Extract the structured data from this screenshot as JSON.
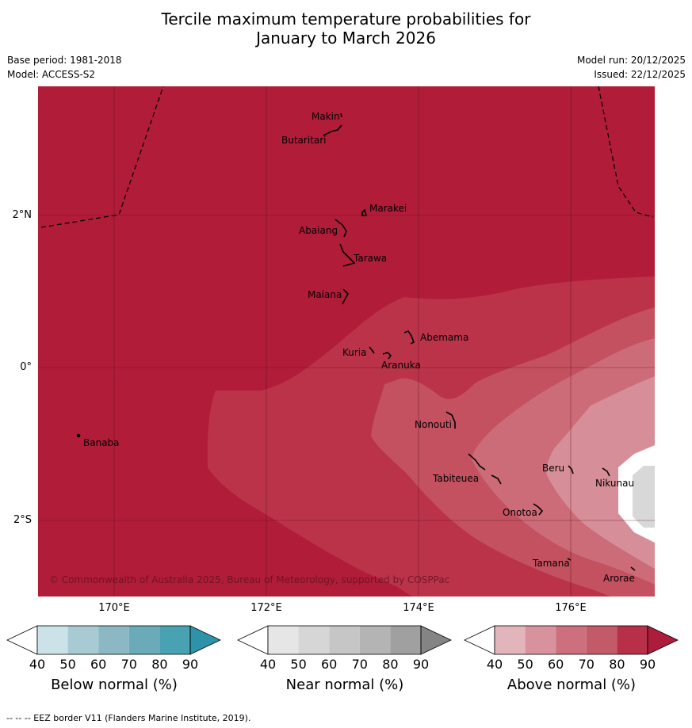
{
  "title_line1": "Tercile maximum temperature probabilities for",
  "title_line2": "January to March 2026",
  "base_period": "Base period: 1981-2018",
  "model": "Model: ACCESS-S2",
  "model_run": "Model run: 20/12/2025",
  "issued": "Issued: 22/12/2025",
  "copyright": "© Commonwealth of Australia 2025, Bureau of Meteorology, supported by COSPPac",
  "longitudes": [
    "170°E",
    "172°E",
    "174°E",
    "176°E"
  ],
  "latitudes": [
    "2°N",
    "0°",
    "2°S"
  ],
  "islands": {
    "makin": "Makin",
    "butaritari": "Butaritari",
    "marakei": "Marakei",
    "abaiang": "Abaiang",
    "tarawa": "Tarawa",
    "maiana": "Maiana",
    "abemama": "Abemama",
    "kuria": "Kuria",
    "aranuka": "Aranuka",
    "banaba": "Banaba",
    "nonouti": "Nonouti",
    "tabiteuea": "Tabiteuea",
    "beru": "Beru",
    "nikunau": "Nikunau",
    "onotoa": "Onotoa",
    "tamana": "Tamana",
    "arorae": "Arorae"
  },
  "colorbars": {
    "below": {
      "label": "Below normal (%)",
      "ticks": [
        "40",
        "50",
        "60",
        "70",
        "80",
        "90"
      ],
      "colors": [
        "#ffffff",
        "#cbe2e9",
        "#a8cbd3",
        "#8bb8c3",
        "#6babb9",
        "#48a2b2",
        "#2e93a8"
      ]
    },
    "near": {
      "label": "Near normal (%)",
      "ticks": [
        "40",
        "50",
        "60",
        "70",
        "80",
        "90"
      ],
      "colors": [
        "#ffffff",
        "#e6e6e6",
        "#d6d6d6",
        "#c6c6c6",
        "#b4b4b4",
        "#a0a0a0",
        "#848484"
      ]
    },
    "above": {
      "label": "Above normal (%)",
      "ticks": [
        "40",
        "50",
        "60",
        "70",
        "80",
        "90"
      ],
      "colors": [
        "#ffffff",
        "#e2b5bd",
        "#d8929d",
        "#cd6f7d",
        "#c35a68",
        "#b73048",
        "#ae1c3c"
      ]
    }
  },
  "map_colors": {
    "gt90": "#b11c38",
    "p80_90": "#bb3349",
    "p70_80": "#c3515f",
    "p60_70": "#cc6c78",
    "p50_60": "#d68f98",
    "near": "#d8d8d8"
  },
  "footer": "--  --  -- EEZ border V11 (Flanders Marine Institute, 2019)."
}
